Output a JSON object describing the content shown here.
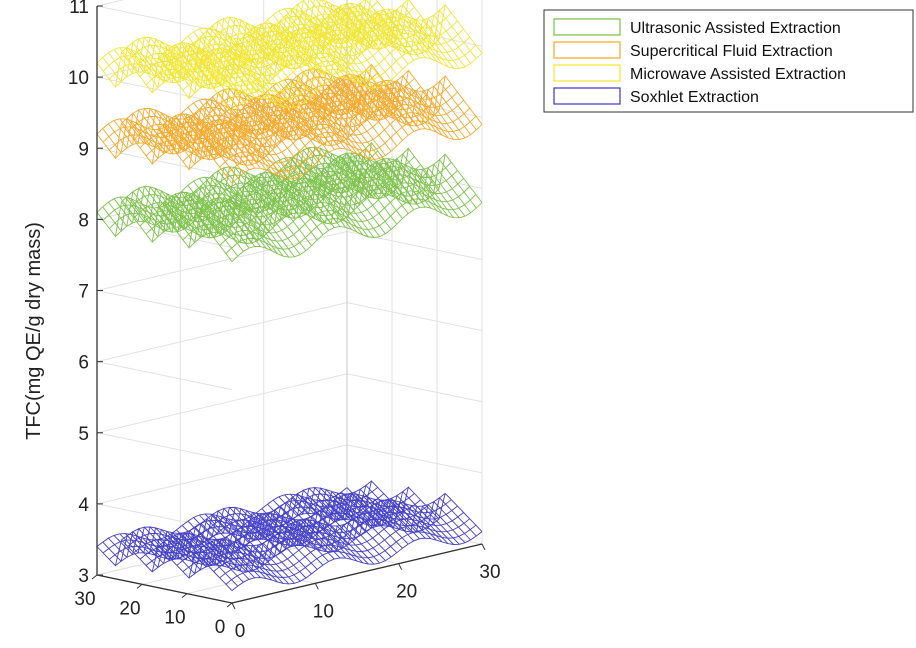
{
  "chart_data": {
    "type": "surface3d",
    "zlabel": "TFC(mg QE/g dry mass)",
    "zlim": [
      3,
      11
    ],
    "z_ticks": [
      3,
      4,
      5,
      6,
      7,
      8,
      9,
      10,
      11
    ],
    "x_ticks": [
      "0",
      "10",
      "20",
      "30"
    ],
    "y_ticks": [
      "30",
      "20",
      "10",
      "0"
    ],
    "xlim": [
      0,
      30
    ],
    "ylim": [
      0,
      30
    ],
    "grid": true,
    "legend_position": "top-right",
    "series": [
      {
        "name": "Ultrasonic Assisted Extraction",
        "color": "#77c043",
        "base": 8.1,
        "amplitude": 0.4
      },
      {
        "name": "Supercritical Fluid Extraction",
        "color": "#f5a623",
        "base": 9.2,
        "amplitude": 0.4
      },
      {
        "name": "Microwave Assisted Extraction",
        "color": "#f2e52b",
        "base": 10.2,
        "amplitude": 0.4
      },
      {
        "name": "Soxhlet Extraction",
        "color": "#3a36c6",
        "base": 3.4,
        "amplitude": 0.3
      }
    ]
  }
}
